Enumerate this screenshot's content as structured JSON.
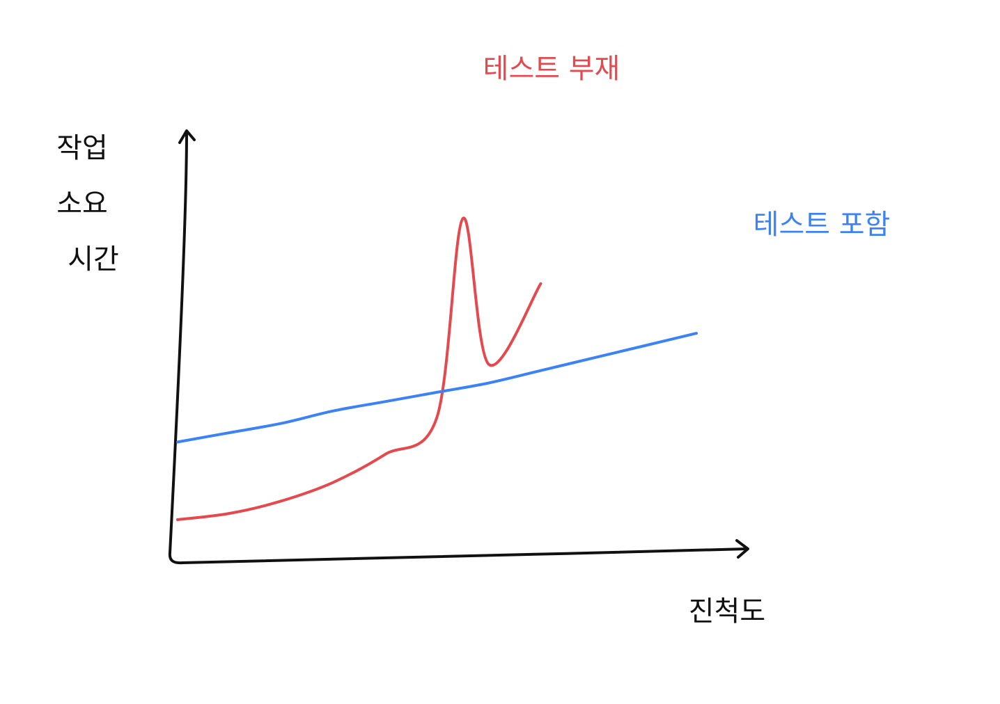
{
  "chart_data": {
    "type": "line",
    "title": "",
    "xlabel": "진척도",
    "ylabel_lines": [
      "작업",
      "소요",
      "시간"
    ],
    "x": [
      0,
      10,
      20,
      30,
      40,
      50,
      60,
      70,
      80,
      90,
      100
    ],
    "series": [
      {
        "name": "테스트 부재",
        "color": "#e5484d",
        "values": [
          13,
          15,
          19,
          25,
          34,
          46,
          63,
          89,
          null,
          null,
          null
        ],
        "extra_points": [
          [
            55,
            110
          ]
        ]
      },
      {
        "name": "테스트 포함",
        "color": "#3b82f6",
        "values": [
          38,
          41,
          44,
          48,
          51,
          54,
          57,
          61,
          65,
          69,
          73
        ]
      }
    ],
    "xlim": [
      0,
      100
    ],
    "ylim": [
      0,
      140
    ],
    "grid": false,
    "legend": "direct-labels"
  }
}
